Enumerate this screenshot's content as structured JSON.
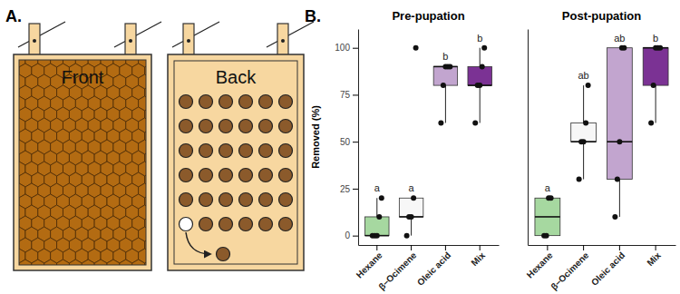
{
  "panel_a": {
    "label": "A.",
    "front": "Front",
    "back": "Back"
  },
  "panel_b": {
    "label": "B."
  },
  "chart_data": [
    {
      "type": "box",
      "title": "Pre-pupation",
      "y_label": "Removed (%)",
      "categories": [
        "Hexane",
        "β−Ocimene",
        "Oleic acid",
        "Mix"
      ],
      "colors": [
        "#a6d8a0",
        "#f7f7f7",
        "#c2a5cf",
        "#7b3294"
      ],
      "points": [
        [
          0,
          0,
          0,
          10,
          20
        ],
        [
          0,
          10,
          10,
          20,
          100
        ],
        [
          60,
          80,
          90,
          90,
          90
        ],
        [
          60,
          80,
          80,
          90,
          100
        ]
      ],
      "box": [
        {
          "q1": 0,
          "median": 0,
          "q3": 10,
          "whisker_low": 0,
          "whisker_high": 20
        },
        {
          "q1": 10,
          "median": 10,
          "q3": 20,
          "whisker_low": 0,
          "whisker_high": 20
        },
        {
          "q1": 80,
          "median": 90,
          "q3": 90,
          "whisker_low": 60,
          "whisker_high": 90
        },
        {
          "q1": 80,
          "median": 80,
          "q3": 90,
          "whisker_low": 60,
          "whisker_high": 100
        }
      ],
      "letters": [
        "a",
        "a",
        "b",
        "b"
      ],
      "ylim": [
        -5,
        110
      ],
      "yticks": [
        0,
        25,
        50,
        75,
        100
      ]
    },
    {
      "type": "box",
      "title": "Post-pupation",
      "categories": [
        "Hexane",
        "β−Ocimene",
        "Oleic acid",
        "Mix"
      ],
      "colors": [
        "#a6d8a0",
        "#f7f7f7",
        "#c2a5cf",
        "#7b3294"
      ],
      "points": [
        [
          0,
          0,
          20,
          20
        ],
        [
          30,
          50,
          50,
          60,
          80
        ],
        [
          10,
          30,
          50,
          100,
          100
        ],
        [
          60,
          80,
          100,
          100,
          100
        ]
      ],
      "box": [
        {
          "q1": 0,
          "median": 10,
          "q3": 20,
          "whisker_low": 0,
          "whisker_high": 20
        },
        {
          "q1": 50,
          "median": 50,
          "q3": 60,
          "whisker_low": 30,
          "whisker_high": 80
        },
        {
          "q1": 30,
          "median": 50,
          "q3": 100,
          "whisker_low": 10,
          "whisker_high": 100
        },
        {
          "q1": 80,
          "median": 100,
          "q3": 100,
          "whisker_low": 60,
          "whisker_high": 100
        }
      ],
      "letters": [
        "a",
        "ab",
        "ab",
        "b"
      ],
      "ylim": [
        -5,
        110
      ],
      "tick_labels": "x"
    }
  ]
}
